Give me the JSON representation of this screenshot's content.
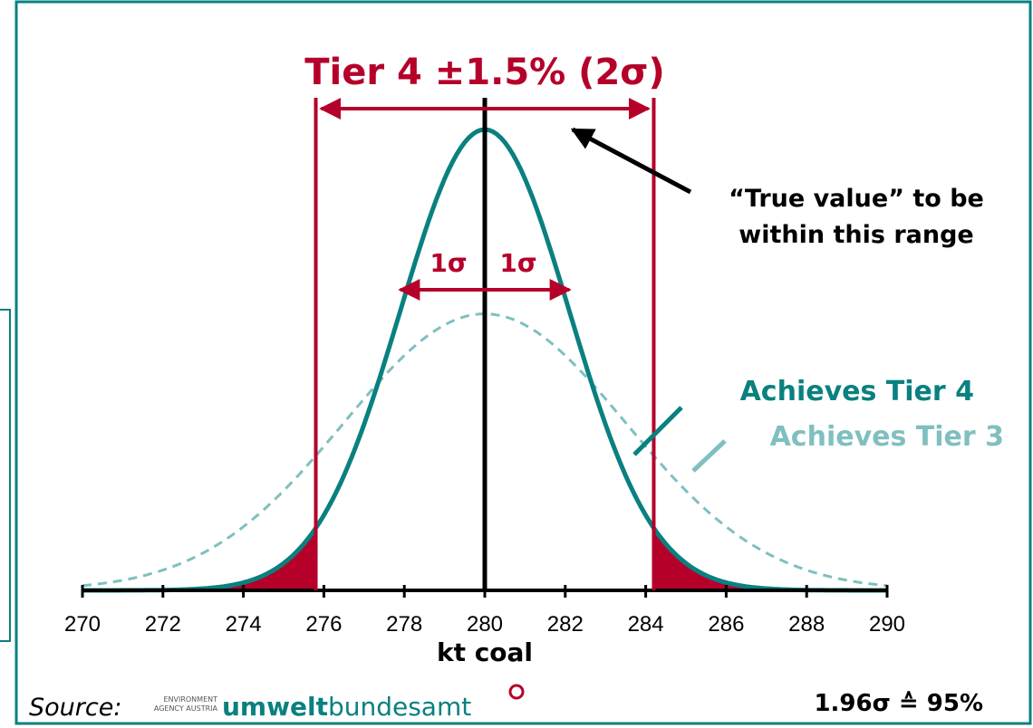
{
  "chart_data": {
    "type": "normal-curves",
    "title": "Tier 4 ±1.5% (2σ)",
    "xlabel": "kt coal",
    "xlim": [
      270,
      290
    ],
    "xticks": [
      270,
      272,
      274,
      276,
      278,
      280,
      282,
      284,
      286,
      288,
      290
    ],
    "series": [
      {
        "name": "Achieves Tier 4",
        "color": "#0a8080",
        "mean": 280,
        "sigma": 2.1,
        "dashed": false
      },
      {
        "name": "Achieves Tier 3",
        "color": "#80bfbf",
        "mean": 280,
        "sigma": 3.5,
        "dashed": true
      }
    ],
    "bounds": [
      275.8,
      284.2
    ],
    "one_sigma": [
      277.9,
      282.1
    ],
    "sigma_labels": [
      "1σ",
      "1σ"
    ],
    "annotation": [
      "“True value” to be",
      "within this range"
    ],
    "source": "Source:",
    "logo": {
      "small": [
        "ENVIRONMENT",
        "AGENCY AUSTRIA"
      ],
      "bold": "umwelt",
      "rest": "bundesamt"
    },
    "footnote": "1.96σ ≙ 95%"
  }
}
